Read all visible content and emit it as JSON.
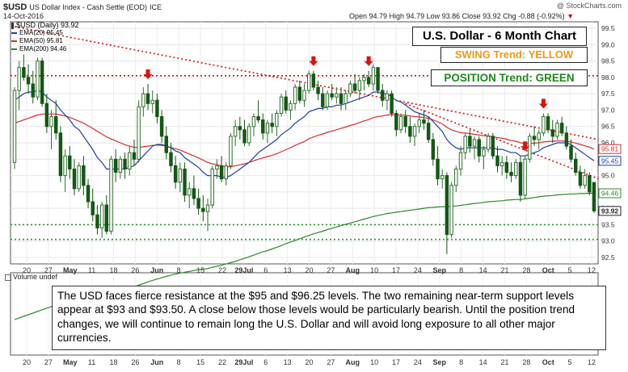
{
  "header": {
    "symbol": "$USD",
    "name": "US Dollar Index - Cash Settle (EOD)",
    "exchange": "ICE",
    "date": "14-Oct-2016",
    "quote": "Open 94.79  High 94.79  Low 93.86  Close 93.92  Chg -0.88 (-0.92%)",
    "quote_arrow": "▼",
    "watermark": "@ StockCharts.com"
  },
  "legend": {
    "title": "$USD (Daily) 93.92",
    "ema20": "EMA(20) 95.45",
    "ema50": "EMA(50) 95.81",
    "ema200": "EMA(200) 94.46"
  },
  "boxes": {
    "title": "U.S. Dollar - 6 Month Chart",
    "swing": "SWING Trend: YELLOW",
    "position": "POSITION Trend: GREEN"
  },
  "volume_label": "Volume undef",
  "commentary": "The USD faces fierce resistance at the $95 and $96.25 levels. The two remaining near-term support levels appear at $93 and $93.50. A close below those levels would be particularly bearish. Until the position trend changes, we will continue to remain long the U.S. Dollar and will avoid long exposure to all other major currencies.",
  "colors": {
    "candle_up": "#2f6f2f",
    "candle_down": "#155715",
    "ema20": "#1f3f9f",
    "ema50": "#d23030",
    "ema200": "#2a8a2a",
    "resistance": "#d01010",
    "support": "#2a9a2a",
    "swing_text": "#f09818",
    "position_text": "#1a8a1a",
    "arrow": "#e01010"
  },
  "chart_data": {
    "type": "candlestick",
    "ylim": [
      92.5,
      99.5
    ],
    "y_ticks": [
      "99.5",
      "99.0",
      "98.5",
      "98.0",
      "97.5",
      "97.0",
      "96.5",
      "96.0",
      "95.5",
      "95.0",
      "94.5",
      "94.0",
      "93.5",
      "93.0",
      "92.5"
    ],
    "x_ticks": [
      "20",
      "27",
      "May",
      "11",
      "18",
      "26",
      "Jun",
      "8",
      "15",
      "22",
      "29Jul",
      "6",
      "13",
      "20",
      "27",
      "Aug",
      "10",
      "17",
      "24",
      "Sep",
      "8",
      "14",
      "21",
      "28",
      "Oct",
      "5",
      "12"
    ],
    "last_values": {
      "close": "93.92",
      "ema20": "95.45",
      "ema50": "95.81",
      "ema200": "94.46"
    },
    "horizontal_levels": [
      {
        "kind": "resistance",
        "value": 98.05
      },
      {
        "kind": "support",
        "value": 93.5
      },
      {
        "kind": "support",
        "value": 93.05
      }
    ],
    "trendlines": [
      {
        "kind": "resistance",
        "from": {
          "day": 0,
          "value": 99.55
        },
        "to": {
          "day": 127,
          "value": 96.1
        }
      },
      {
        "kind": "resistance",
        "from": {
          "day": 85,
          "value": 97.2
        },
        "to": {
          "day": 127,
          "value": 94.9
        }
      }
    ],
    "swing_arrows_at_day": [
      29,
      65,
      77,
      111,
      115
    ],
    "candles": [
      [
        95.4,
        97.7,
        95.2,
        97.6
      ],
      [
        97.6,
        98.5,
        97.0,
        98.3
      ],
      [
        98.3,
        98.7,
        97.9,
        98.0
      ],
      [
        98.0,
        98.4,
        97.5,
        97.8
      ],
      [
        97.8,
        98.2,
        97.2,
        97.4
      ],
      [
        97.4,
        98.6,
        97.3,
        98.5
      ],
      [
        98.5,
        98.6,
        97.1,
        97.2
      ],
      [
        97.2,
        97.5,
        96.3,
        96.5
      ],
      [
        96.5,
        97.0,
        95.8,
        96.8
      ],
      [
        96.8,
        97.3,
        96.1,
        96.3
      ],
      [
        96.3,
        96.5,
        94.8,
        95.0
      ],
      [
        95.0,
        95.8,
        94.5,
        95.6
      ],
      [
        95.6,
        95.9,
        94.9,
        95.2
      ],
      [
        95.2,
        95.5,
        94.4,
        94.6
      ],
      [
        94.6,
        95.4,
        94.5,
        95.3
      ],
      [
        95.3,
        95.6,
        94.4,
        94.7
      ],
      [
        94.7,
        94.9,
        94.0,
        94.2
      ],
      [
        94.2,
        94.6,
        93.6,
        93.8
      ],
      [
        93.8,
        94.1,
        93.2,
        93.4
      ],
      [
        93.4,
        94.2,
        93.1,
        94.1
      ],
      [
        94.1,
        94.4,
        93.2,
        93.3
      ],
      [
        93.3,
        95.6,
        93.2,
        95.5
      ],
      [
        95.5,
        95.8,
        94.8,
        95.1
      ],
      [
        95.1,
        95.6,
        94.9,
        95.5
      ],
      [
        95.5,
        95.7,
        94.9,
        95.2
      ],
      [
        95.2,
        95.9,
        95.0,
        95.7
      ],
      [
        95.7,
        96.1,
        95.3,
        95.5
      ],
      [
        95.5,
        97.3,
        95.4,
        97.1
      ],
      [
        97.1,
        97.7,
        96.8,
        97.5
      ],
      [
        97.5,
        97.8,
        97.0,
        97.2
      ],
      [
        97.2,
        97.6,
        96.9,
        97.3
      ],
      [
        97.3,
        97.5,
        96.6,
        96.8
      ],
      [
        96.8,
        97.0,
        96.0,
        96.2
      ],
      [
        96.2,
        96.5,
        95.5,
        95.7
      ],
      [
        95.7,
        96.0,
        95.1,
        95.3
      ],
      [
        95.3,
        95.6,
        94.6,
        94.8
      ],
      [
        94.8,
        95.4,
        94.5,
        95.2
      ],
      [
        95.2,
        95.4,
        94.2,
        94.4
      ],
      [
        94.4,
        94.8,
        94.0,
        94.6
      ],
      [
        94.6,
        95.0,
        94.1,
        94.3
      ],
      [
        94.3,
        94.6,
        93.8,
        94.0
      ],
      [
        94.0,
        94.4,
        93.6,
        93.9
      ],
      [
        93.9,
        94.3,
        93.3,
        94.1
      ],
      [
        94.1,
        95.3,
        94.0,
        95.2
      ],
      [
        95.2,
        95.5,
        94.9,
        95.3
      ],
      [
        95.3,
        95.6,
        94.8,
        94.9
      ],
      [
        94.9,
        95.4,
        94.7,
        95.3
      ],
      [
        95.3,
        96.3,
        95.2,
        96.2
      ],
      [
        96.2,
        96.7,
        95.9,
        96.5
      ],
      [
        96.5,
        96.8,
        96.1,
        96.4
      ],
      [
        96.4,
        96.7,
        95.9,
        96.0
      ],
      [
        96.0,
        96.6,
        95.9,
        96.5
      ],
      [
        96.5,
        96.9,
        96.2,
        96.8
      ],
      [
        96.8,
        97.3,
        96.6,
        96.7
      ],
      [
        96.7,
        96.9,
        96.1,
        96.3
      ],
      [
        96.3,
        96.7,
        96.0,
        96.6
      ],
      [
        96.6,
        96.9,
        96.3,
        96.5
      ],
      [
        96.5,
        97.0,
        96.2,
        96.9
      ],
      [
        96.9,
        97.5,
        96.8,
        97.4
      ],
      [
        97.4,
        97.6,
        96.9,
        97.0
      ],
      [
        97.0,
        97.3,
        96.7,
        97.2
      ],
      [
        97.2,
        97.8,
        97.0,
        97.7
      ],
      [
        97.7,
        97.9,
        97.2,
        97.3
      ],
      [
        97.3,
        97.8,
        97.1,
        97.6
      ],
      [
        97.6,
        98.2,
        97.5,
        98.1
      ],
      [
        98.1,
        98.2,
        97.6,
        97.7
      ],
      [
        97.7,
        97.9,
        97.3,
        97.5
      ],
      [
        97.5,
        97.7,
        97.0,
        97.1
      ],
      [
        97.1,
        97.6,
        97.0,
        97.5
      ],
      [
        97.5,
        97.8,
        97.3,
        97.4
      ],
      [
        97.4,
        97.7,
        97.2,
        97.5
      ],
      [
        97.5,
        97.7,
        97.0,
        97.2
      ],
      [
        97.2,
        97.6,
        97.0,
        97.5
      ],
      [
        97.5,
        97.9,
        97.4,
        97.8
      ],
      [
        97.8,
        98.1,
        97.5,
        97.6
      ],
      [
        97.6,
        98.0,
        97.3,
        97.9
      ],
      [
        97.9,
        98.1,
        97.6,
        98.0
      ],
      [
        98.0,
        98.2,
        97.7,
        97.8
      ],
      [
        97.8,
        98.4,
        97.6,
        98.3
      ],
      [
        98.3,
        98.3,
        97.5,
        97.6
      ],
      [
        97.6,
        97.8,
        97.1,
        97.3
      ],
      [
        97.3,
        97.6,
        97.0,
        97.5
      ],
      [
        97.5,
        97.6,
        96.8,
        96.9
      ],
      [
        96.9,
        97.0,
        96.2,
        96.4
      ],
      [
        96.4,
        96.9,
        96.3,
        96.8
      ],
      [
        96.8,
        97.0,
        96.3,
        96.5
      ],
      [
        96.5,
        96.8,
        96.0,
        96.2
      ],
      [
        96.2,
        96.6,
        95.9,
        96.5
      ],
      [
        96.5,
        96.9,
        96.3,
        96.7
      ],
      [
        96.7,
        97.0,
        96.4,
        96.6
      ],
      [
        96.6,
        96.8,
        96.0,
        96.1
      ],
      [
        96.1,
        96.3,
        95.3,
        95.5
      ],
      [
        95.5,
        95.9,
        94.7,
        94.9
      ],
      [
        94.9,
        95.2,
        94.6,
        95.0
      ],
      [
        95.0,
        95.1,
        92.6,
        93.2
      ],
      [
        93.2,
        94.8,
        93.1,
        94.7
      ],
      [
        94.7,
        95.3,
        94.5,
        95.2
      ],
      [
        95.2,
        95.9,
        95.0,
        95.7
      ],
      [
        95.7,
        96.3,
        95.5,
        96.2
      ],
      [
        96.2,
        96.4,
        95.7,
        95.9
      ],
      [
        95.9,
        96.2,
        95.5,
        96.1
      ],
      [
        96.1,
        96.2,
        95.4,
        95.6
      ],
      [
        95.6,
        95.9,
        95.2,
        95.8
      ],
      [
        95.8,
        96.3,
        95.7,
        96.2
      ],
      [
        96.2,
        96.3,
        95.5,
        95.6
      ],
      [
        95.6,
        95.9,
        95.1,
        95.3
      ],
      [
        95.3,
        95.6,
        95.0,
        95.4
      ],
      [
        95.4,
        95.6,
        94.9,
        95.1
      ],
      [
        95.1,
        95.4,
        94.8,
        95.0
      ],
      [
        95.0,
        95.5,
        94.9,
        95.4
      ],
      [
        95.4,
        95.6,
        94.2,
        94.4
      ],
      [
        94.4,
        95.6,
        94.3,
        95.5
      ],
      [
        95.5,
        96.3,
        95.4,
        96.2
      ],
      [
        96.2,
        96.5,
        95.9,
        96.1
      ],
      [
        96.1,
        96.4,
        95.8,
        96.3
      ],
      [
        96.3,
        96.9,
        96.2,
        96.8
      ],
      [
        96.8,
        96.9,
        96.3,
        96.4
      ],
      [
        96.4,
        96.7,
        96.0,
        96.2
      ],
      [
        96.2,
        96.7,
        96.1,
        96.6
      ],
      [
        96.6,
        96.8,
        96.2,
        96.3
      ],
      [
        96.3,
        96.5,
        95.8,
        95.9
      ],
      [
        95.9,
        96.1,
        95.4,
        95.5
      ],
      [
        95.5,
        95.7,
        95.0,
        95.1
      ],
      [
        95.1,
        95.3,
        94.6,
        94.7
      ],
      [
        94.7,
        95.2,
        94.6,
        95.0
      ],
      [
        95.0,
        95.1,
        94.4,
        94.5
      ],
      [
        94.79,
        94.79,
        93.86,
        93.92
      ]
    ],
    "ema20": [
      97.3,
      97.4,
      97.5,
      97.55,
      97.55,
      97.6,
      97.55,
      97.4,
      97.3,
      97.2,
      97.0,
      96.85,
      96.7,
      96.5,
      96.4,
      96.2,
      96.0,
      95.8,
      95.55,
      95.4,
      95.2,
      95.2,
      95.2,
      95.2,
      95.2,
      95.25,
      95.3,
      95.45,
      95.6,
      95.75,
      95.9,
      95.95,
      95.95,
      95.9,
      95.85,
      95.75,
      95.7,
      95.55,
      95.45,
      95.35,
      95.25,
      95.1,
      95.0,
      95.0,
      95.0,
      94.95,
      94.95,
      95.0,
      95.1,
      95.2,
      95.3,
      95.4,
      95.55,
      95.7,
      95.8,
      95.9,
      96.0,
      96.1,
      96.25,
      96.35,
      96.45,
      96.6,
      96.7,
      96.8,
      96.95,
      97.0,
      97.05,
      97.05,
      97.1,
      97.1,
      97.15,
      97.15,
      97.2,
      97.25,
      97.3,
      97.35,
      97.4,
      97.45,
      97.55,
      97.55,
      97.5,
      97.5,
      97.4,
      97.3,
      97.25,
      97.15,
      97.05,
      96.95,
      96.9,
      96.85,
      96.8,
      96.65,
      96.5,
      96.35,
      96.1,
      95.95,
      95.85,
      95.8,
      95.85,
      95.85,
      95.85,
      95.85,
      95.85,
      95.85,
      95.85,
      95.8,
      95.8,
      95.75,
      95.7,
      95.7,
      95.6,
      95.6,
      95.65,
      95.7,
      95.75,
      95.85,
      95.9,
      95.95,
      96.0,
      96.0,
      96.0,
      95.95,
      95.85,
      95.75,
      95.65,
      95.55,
      95.45
    ],
    "ema50": [
      96.6,
      96.65,
      96.7,
      96.75,
      96.8,
      96.85,
      96.88,
      96.88,
      96.88,
      96.88,
      96.85,
      96.82,
      96.78,
      96.72,
      96.66,
      96.6,
      96.52,
      96.44,
      96.35,
      96.27,
      96.18,
      96.12,
      96.06,
      96.0,
      95.94,
      95.9,
      95.86,
      95.86,
      95.88,
      95.9,
      95.92,
      95.93,
      95.92,
      95.9,
      95.86,
      95.82,
      95.78,
      95.72,
      95.66,
      95.6,
      95.54,
      95.47,
      95.4,
      95.36,
      95.33,
      95.3,
      95.27,
      95.27,
      95.3,
      95.33,
      95.36,
      95.4,
      95.45,
      95.5,
      95.54,
      95.58,
      95.62,
      95.67,
      95.73,
      95.79,
      95.85,
      95.92,
      95.98,
      96.04,
      96.12,
      96.18,
      96.23,
      96.27,
      96.32,
      96.36,
      96.4,
      96.44,
      96.48,
      96.53,
      96.57,
      96.62,
      96.67,
      96.71,
      96.77,
      96.8,
      96.82,
      96.85,
      96.86,
      96.85,
      96.85,
      96.84,
      96.82,
      96.8,
      96.79,
      96.77,
      96.75,
      96.7,
      96.64,
      96.58,
      96.47,
      96.4,
      96.35,
      96.31,
      96.3,
      96.28,
      96.26,
      96.24,
      96.22,
      96.21,
      96.19,
      96.16,
      96.14,
      96.11,
      96.07,
      96.05,
      96.0,
      95.98,
      95.98,
      95.99,
      96.0,
      96.03,
      96.04,
      96.05,
      96.06,
      96.06,
      96.05,
      96.03,
      95.99,
      95.95,
      95.91,
      95.87,
      95.81
    ],
    "ema200": [
      90.6,
      90.65,
      90.7,
      90.75,
      90.8,
      90.85,
      90.9,
      90.95,
      91.0,
      91.05,
      91.08,
      91.12,
      91.15,
      91.18,
      91.22,
      91.25,
      91.28,
      91.31,
      91.33,
      91.36,
      91.38,
      91.42,
      91.45,
      91.49,
      91.52,
      91.56,
      91.6,
      91.65,
      91.7,
      91.75,
      91.8,
      91.84,
      91.88,
      91.92,
      91.96,
      91.99,
      92.02,
      92.05,
      92.07,
      92.1,
      92.12,
      92.14,
      92.16,
      92.2,
      92.23,
      92.26,
      92.3,
      92.34,
      92.38,
      92.43,
      92.47,
      92.52,
      92.57,
      92.62,
      92.67,
      92.71,
      92.76,
      92.81,
      92.86,
      92.92,
      92.97,
      93.02,
      93.07,
      93.12,
      93.17,
      93.22,
      93.26,
      93.3,
      93.35,
      93.39,
      93.43,
      93.47,
      93.51,
      93.55,
      93.59,
      93.63,
      93.67,
      93.71,
      93.75,
      93.78,
      93.81,
      93.84,
      93.86,
      93.88,
      93.9,
      93.92,
      93.94,
      93.96,
      93.98,
      94.0,
      94.02,
      94.03,
      94.04,
      94.05,
      94.05,
      94.06,
      94.07,
      94.09,
      94.11,
      94.13,
      94.15,
      94.16,
      94.18,
      94.2,
      94.21,
      94.22,
      94.23,
      94.25,
      94.26,
      94.27,
      94.27,
      94.29,
      94.31,
      94.33,
      94.35,
      94.37,
      94.38,
      94.39,
      94.41,
      94.42,
      94.43,
      94.44,
      94.44,
      94.45,
      94.45,
      94.46,
      94.46
    ]
  }
}
